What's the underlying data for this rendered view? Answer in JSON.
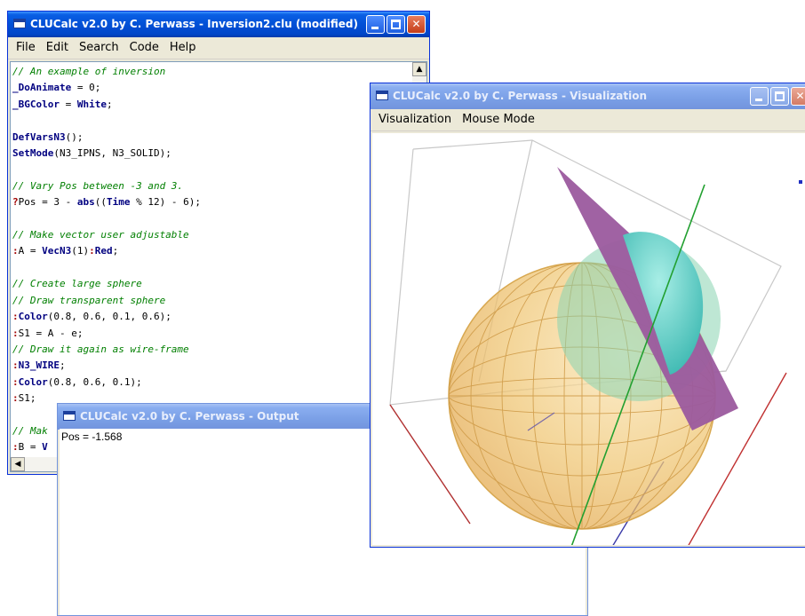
{
  "editor_window": {
    "title": "CLUCalc v2.0 by C. Perwass - Inversion2.clu (modified)",
    "menu": [
      "File",
      "Edit",
      "Search",
      "Code",
      "Help"
    ]
  },
  "visualization_window": {
    "title": "CLUCalc v2.0 by C. Perwass - Visualization",
    "menu": [
      "Visualization",
      "Mouse Mode"
    ]
  },
  "output_window": {
    "title": "CLUCalc v2.0 by C. Perwass - Output",
    "text": "Pos = -1.568"
  },
  "code": {
    "l1": "// An example of inversion",
    "l2a": "_DoAnimate",
    "l2b": " = 0;",
    "l3a": "_BGColor",
    "l3b": " = ",
    "l3c": "White",
    "l3d": ";",
    "l5a": "DefVarsN3",
    "l5b": "();",
    "l6a": "SetMode",
    "l6b": "(N3_IPNS, N3_SOLID);",
    "l8": "// Vary Pos between -3 and 3.",
    "l9a": "?",
    "l9b": "Pos = 3 - ",
    "l9c": "abs",
    "l9d": "((",
    "l9e": "Time",
    "l9f": " % 12) - 6);",
    "l11": "// Make vector user adjustable",
    "l12a": ":",
    "l12b": "A = ",
    "l12c": "VecN3",
    "l12d": "(1)",
    "l12e": ":",
    "l12f": "Red",
    "l12g": ";",
    "l14": "// Create large sphere",
    "l15": "// Draw transparent sphere",
    "l16a": ":",
    "l16b": "Color",
    "l16c": "(0.8, 0.6, 0.1, 0.6);",
    "l17a": ":",
    "l17b": "S1 = A - e;",
    "l18": "// Draw it again as wire-frame",
    "l19a": ":",
    "l19b": "N3_WIRE",
    "l19c": ";",
    "l20a": ":",
    "l20b": "Color",
    "l20c": "(0.8, 0.6, 0.1);",
    "l21a": ":",
    "l21b": "S1;",
    "l23": "// Mak",
    "l24a": ":",
    "l24b": "B = ",
    "l24c": "V"
  },
  "colors": {
    "titlebar_active": "#0250d6",
    "sphere": "#f0c26a",
    "plane": "#9b5a9e",
    "inner_sphere": "#5fcfc7"
  }
}
